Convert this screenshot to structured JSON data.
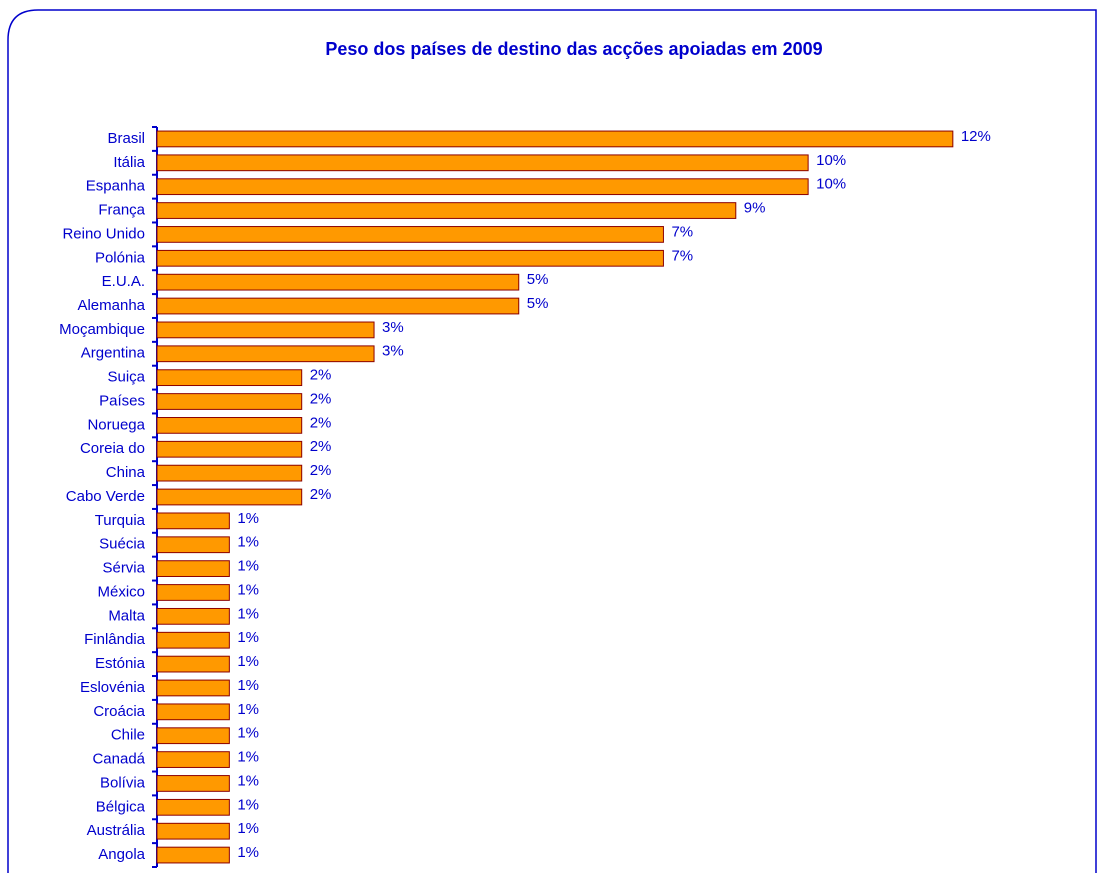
{
  "chart_data": {
    "type": "bar",
    "orientation": "horizontal",
    "title": "Peso dos países de destino das acções apoiadas em 2009",
    "categories": [
      "Brasil",
      "Itália",
      "Espanha",
      "França",
      "Reino Unido",
      "Polónia",
      "E.U.A.",
      "Alemanha",
      "Moçambique",
      "Argentina",
      "Suiça",
      "Países",
      "Noruega",
      "Coreia do",
      "China",
      "Cabo Verde",
      "Turquia",
      "Suécia",
      "Sérvia",
      "México",
      "Malta",
      "Finlândia",
      "Estónia",
      "Eslovénia",
      "Croácia",
      "Chile",
      "Canadá",
      "Bolívia",
      "Bélgica",
      "Austrália",
      "Angola"
    ],
    "values": [
      11.77,
      9.63,
      9.63,
      8.56,
      7.49,
      7.49,
      5.35,
      5.35,
      3.21,
      3.21,
      2.14,
      2.14,
      2.14,
      2.14,
      2.14,
      2.14,
      1.07,
      1.07,
      1.07,
      1.07,
      1.07,
      1.07,
      1.07,
      1.07,
      1.07,
      1.07,
      1.07,
      1.07,
      1.07,
      1.07,
      1.07
    ],
    "value_labels": [
      "12%",
      "10%",
      "10%",
      "9%",
      "7%",
      "7%",
      "5%",
      "5%",
      "3%",
      "3%",
      "2%",
      "2%",
      "2%",
      "2%",
      "2%",
      "2%",
      "1%",
      "1%",
      "1%",
      "1%",
      "1%",
      "1%",
      "1%",
      "1%",
      "1%",
      "1%",
      "1%",
      "1%",
      "1%",
      "1%",
      "1%"
    ],
    "color": "#ff9900",
    "edge_color": "#8b0000",
    "text_color": "#0000cc",
    "xlim": [
      0,
      13
    ]
  }
}
